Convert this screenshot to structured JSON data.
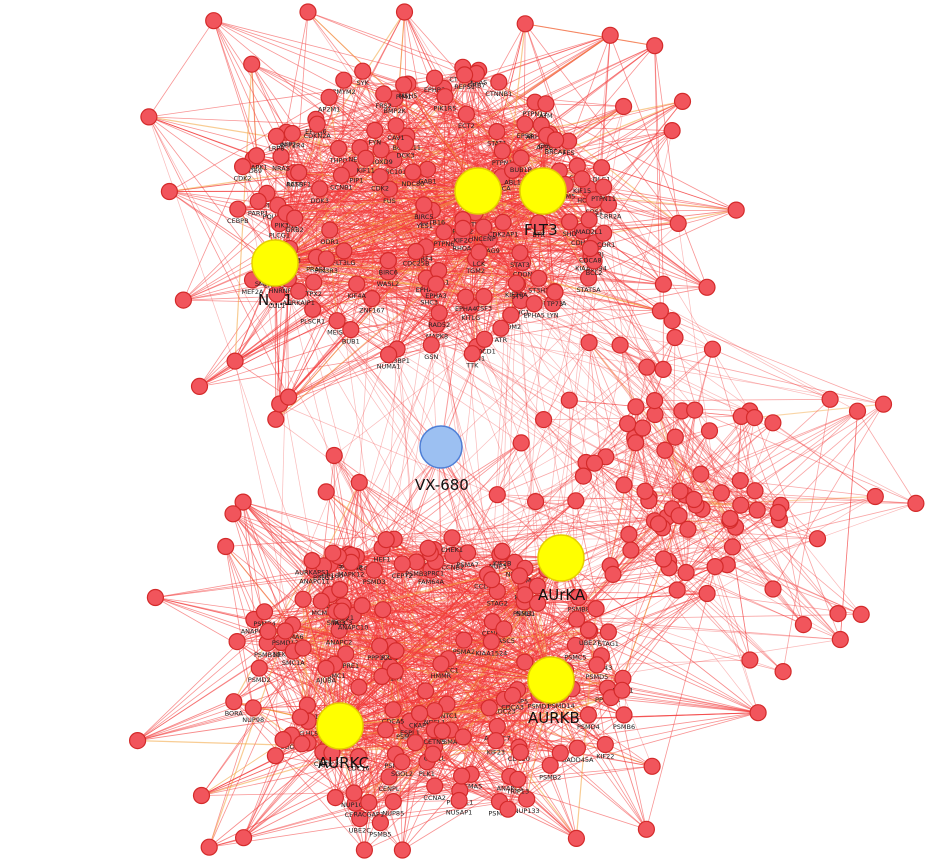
{
  "colors": {
    "node_fill": "#f1555c",
    "node_stroke": "#d42a2a",
    "hub_fill": "#ffff00",
    "hub_stroke": "#e6cf00",
    "drug_fill": "#9cc0f2",
    "drug_stroke": "#4f7fd6",
    "edge_red": "#f23a3a",
    "edge_orange": "#f2a23a"
  },
  "drug": {
    "label": "VX-680"
  },
  "hubs": [
    {
      "id": "NTRK1",
      "label": "N...1"
    },
    {
      "id": "FLT3",
      "label": "FLT3"
    },
    {
      "id": "JAK2",
      "label": ""
    },
    {
      "id": "AURKA",
      "label": "AUrKA"
    },
    {
      "id": "AURKB",
      "label": "AURKB"
    },
    {
      "id": "AURKC",
      "label": "AURKC"
    }
  ],
  "labels": [
    "TSC101",
    "PTPRJ",
    "PTPN12",
    "DLG1",
    "ERCC3",
    "BCL2L11",
    "CUL1",
    "FLT3LG",
    "CD69",
    "THPO",
    "MEIS1",
    "NCKAP1",
    "WASL2",
    "FCRR2A",
    "EPS8",
    "TLN1",
    "SHC1",
    "ACTB",
    "CSF2",
    "KITLG",
    "CSF3",
    "SPI1",
    "PQU2AF1",
    "PLSCR1",
    "CDH13",
    "DOK3",
    "DCK3",
    "SHC3",
    "VEGFA",
    "GAB1",
    "FES",
    "ZMYM2",
    "NCOR1",
    "BNIP2",
    "CYFIP2",
    "PTPN6",
    "RHOA",
    "PTK2",
    "CBL",
    "TGM2",
    "HOXD9",
    "ODR1",
    "MEF2A",
    "SRC",
    "PRAF1",
    "IRF4",
    "HOXA9",
    "FIZ1",
    "ST5",
    "PSTPIP1",
    "SPAG9",
    "NEDD9",
    "PLCG1",
    "STAT5A",
    "ZNF167",
    "ZBTB16",
    "CDON",
    "SNCA",
    "EPHB2",
    "STAT1",
    "KRAS",
    "NRAS",
    "PIK3R3",
    "PIK3R1",
    "BMP2K",
    "EPHA6",
    "ARHGEF2",
    "SOS1",
    "GRB2",
    "PTPN11",
    "STAT3",
    "PTPN1",
    "MSH5",
    "CTNNA2",
    "EPHA2",
    "PIK3CA",
    "GRB7",
    "FRS2",
    "MAPK3",
    "MAPK1",
    "SH3BP1",
    "STON2",
    "EPHA4",
    "MAPK8",
    "CTNNB1",
    "FYN",
    "LYN",
    "ABL1",
    "YES1",
    "BTK",
    "AP2B1",
    "EPHA1",
    "SYK",
    "LCK",
    "SHD",
    "LRP8",
    "EPHA5",
    "CAV1",
    "CDK2",
    "PIK1R5",
    "PIM1",
    "ST3H3",
    "FUS",
    "CCNB1",
    "EPHA3",
    "CDKN2A",
    "GSN",
    "KIAA0894",
    "HNRNPA2B1",
    "AP2M1",
    "TP73",
    "CEBPB",
    "SMAD2",
    "REPS1",
    "BRCA1",
    "PDCD1",
    "MDM2",
    "CAP1",
    "BCL2",
    "CDC25B",
    "ATM",
    "NUMA1",
    "CDK2AP1",
    "RASSF1",
    "BIRC6",
    "RAD52",
    "PCBP2",
    "CDK2",
    "ECT2",
    "PARP1",
    "AURKAIP1",
    "MCM5",
    "KIF15",
    "PPP2R4",
    "ATR",
    "NDC80",
    "CLTA",
    "TPX2",
    "KIF20A",
    "KIF2C",
    "KIF4A",
    "KIF11",
    "INCENP",
    "BIRC5",
    "CDCA8",
    "BUB1",
    "BUB1B",
    "MAD2L1",
    "TTK",
    "ZW10",
    "KNTC1",
    "CENPE",
    "CENPF",
    "CENPA",
    "CENPL",
    "CASC5",
    "SPAG5",
    "NSL1",
    "NUP37",
    "NUP43",
    "NUP85",
    "NUP107",
    "NUP133",
    "NUP160",
    "NUP98",
    "NDE1",
    "NDEL1",
    "CKAP5",
    "CCDC99",
    "KIF18A",
    "KIF2B",
    "MAPRE1",
    "CEBPD",
    "FAM64A",
    "CDK1",
    "CCNA2",
    "CCNB2",
    "PLK1",
    "NEK2",
    "ANAPC1",
    "ANAPC2",
    "ANAPC4",
    "ANAPC5",
    "ANAPC7",
    "ANAPC10",
    "ANAPC11",
    "CDC16",
    "CDC20",
    "CDC23",
    "CDC27",
    "FZR1",
    "PSMA1",
    "PSMA2",
    "PSMA3",
    "PSMA4",
    "PSMA5",
    "PSMA6",
    "PSMA7",
    "PSMB1",
    "PSMB2",
    "PSMB3",
    "PSMB4",
    "PSMB5",
    "PSMB6",
    "PSMB7",
    "PSMB8",
    "PSMB10",
    "PSMC1",
    "PSMC2",
    "PSMC4",
    "PSMC5",
    "PSMD1",
    "PSMD2",
    "PSMD3",
    "PSMD4",
    "PSMD5",
    "PSMD8",
    "PSMD11",
    "PSMD13",
    "PSMD14",
    "PTTG1",
    "UBE2C",
    "UBE2T",
    "MCM3",
    "ORC1L",
    "KLHL9",
    "PPP1R7",
    "VIM",
    "ESPL1",
    "SGOL1",
    "SGOL2",
    "CDCA5",
    "RAD21",
    "SMC1A",
    "SMC3",
    "STAG1",
    "STAG2",
    "AURKAPS1",
    "TACC3",
    "CKAP2",
    "TACC1",
    "CETN3",
    "NUSAP1",
    "KIF23",
    "RACGAP1",
    "PRC1",
    "HMMR",
    "CHEK1",
    "KIF22",
    "CDCA3",
    "BORA",
    "AJUBA",
    "HEF1",
    "PPP2CA",
    "PPP1CC",
    "GADD45A",
    "RPS6KB1",
    "MAPK12",
    "TRIP13",
    "PSRC1",
    "CEP72",
    "KIAA1524"
  ]
}
